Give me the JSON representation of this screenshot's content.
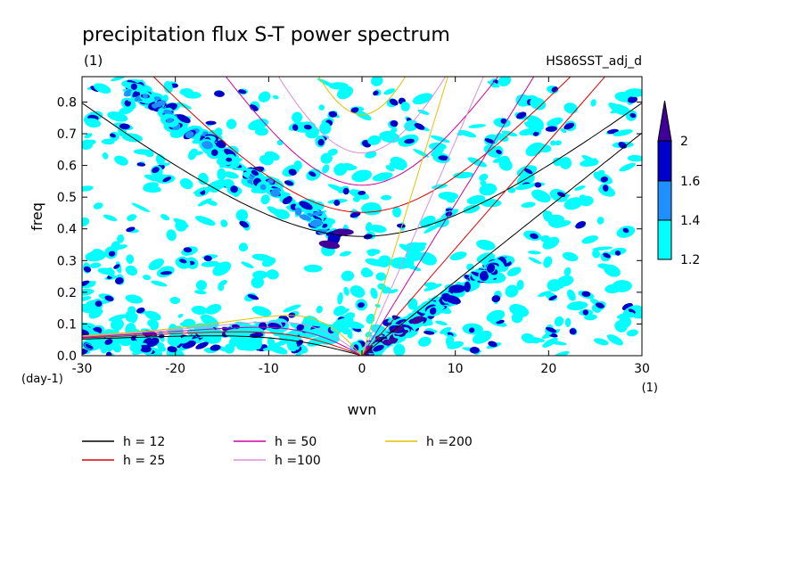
{
  "chart_data": {
    "type": "heatmap",
    "title": "precipitation flux S-T power spectrum",
    "subtitle_left": "(1)",
    "subtitle_right": "HS86SST_adj_d",
    "xlabel": "wvn",
    "ylabel": "freq",
    "x_unit": "(1)",
    "y_unit": "(day-1)",
    "xlim": [
      -30,
      30
    ],
    "ylim": [
      0,
      0.88
    ],
    "x_ticks": [
      "-30",
      "-20",
      "-10",
      "0",
      "10",
      "20",
      "30"
    ],
    "y_ticks": [
      "0.0",
      "0.1",
      "0.2",
      "0.3",
      "0.4",
      "0.5",
      "0.6",
      "0.7",
      "0.8"
    ],
    "colorbar": {
      "levels": [
        "1.2",
        "1.4",
        "1.6",
        "2"
      ],
      "colors": [
        "#00ffff",
        "#1e90ff",
        "#0000c8",
        "#40009a"
      ]
    },
    "dispersion_curves": [
      {
        "label": "h = 12",
        "h": 12,
        "color": "#000000"
      },
      {
        "label": "h = 25",
        "h": 25,
        "color": "#e00000"
      },
      {
        "label": "h = 50",
        "h": 50,
        "color": "#d000a0"
      },
      {
        "label": "h =100",
        "h": 100,
        "color": "#d890d8"
      },
      {
        "label": "h =200",
        "h": 200,
        "color": "#e8c000"
      }
    ]
  }
}
